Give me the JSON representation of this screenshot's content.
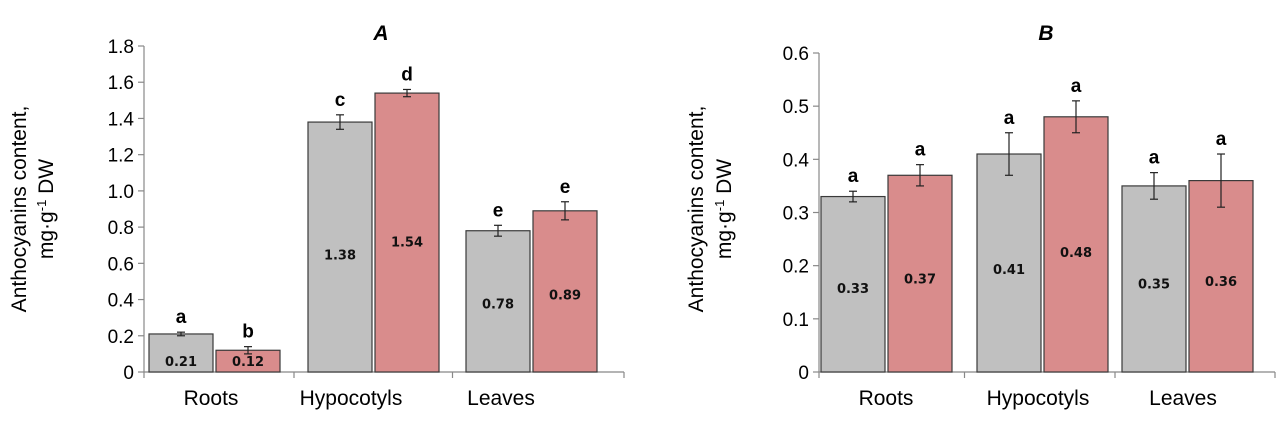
{
  "chart_data": [
    {
      "type": "bar",
      "title": "A",
      "ylabel_line1": "Anthocyanins content,",
      "ylabel_line2_prefix": "mg·g",
      "ylabel_line2_sup": "-1",
      "ylabel_line2_suffix": " DW",
      "categories": [
        "Roots",
        "Hypocotyls",
        "Leaves"
      ],
      "ylim": [
        0,
        1.8
      ],
      "yticks": [
        "0",
        "0.2",
        "0.4",
        "0.6",
        "0.8",
        "1.0",
        "1.2",
        "1.4",
        "1.6",
        "1.8"
      ],
      "series": [
        {
          "color": "#c0c0c0",
          "values": [
            0.21,
            1.38,
            0.78
          ],
          "value_labels": [
            "0.21",
            "1.38",
            "0.78"
          ],
          "errors": [
            0.01,
            0.04,
            0.03
          ],
          "letters": [
            "a",
            "c",
            "e"
          ]
        },
        {
          "color": "#d98c8c",
          "values": [
            0.12,
            1.54,
            0.89
          ],
          "value_labels": [
            "0.12",
            "1.54",
            "0.89"
          ],
          "errors": [
            0.02,
            0.02,
            0.05
          ],
          "letters": [
            "b",
            "d",
            "e"
          ]
        }
      ]
    },
    {
      "type": "bar",
      "title": "B",
      "ylabel_line1": "Anthocyanins content,",
      "ylabel_line2_prefix": "mg·g",
      "ylabel_line2_sup": "-1",
      "ylabel_line2_suffix": " DW",
      "categories": [
        "Roots",
        "Hypocotyls",
        "Leaves"
      ],
      "ylim": [
        0,
        0.6
      ],
      "yticks": [
        "0",
        "0.1",
        "0.2",
        "0.3",
        "0.4",
        "0.5",
        "0.6"
      ],
      "series": [
        {
          "color": "#c0c0c0",
          "values": [
            0.33,
            0.41,
            0.35
          ],
          "value_labels": [
            "0.33",
            "0.41",
            "0.35"
          ],
          "errors": [
            0.01,
            0.04,
            0.025
          ],
          "letters": [
            "a",
            "a",
            "a"
          ]
        },
        {
          "color": "#d98c8c",
          "values": [
            0.37,
            0.48,
            0.36
          ],
          "value_labels": [
            "0.37",
            "0.48",
            "0.36"
          ],
          "errors": [
            0.02,
            0.03,
            0.05
          ],
          "letters": [
            "a",
            "a",
            "a"
          ]
        }
      ]
    }
  ]
}
